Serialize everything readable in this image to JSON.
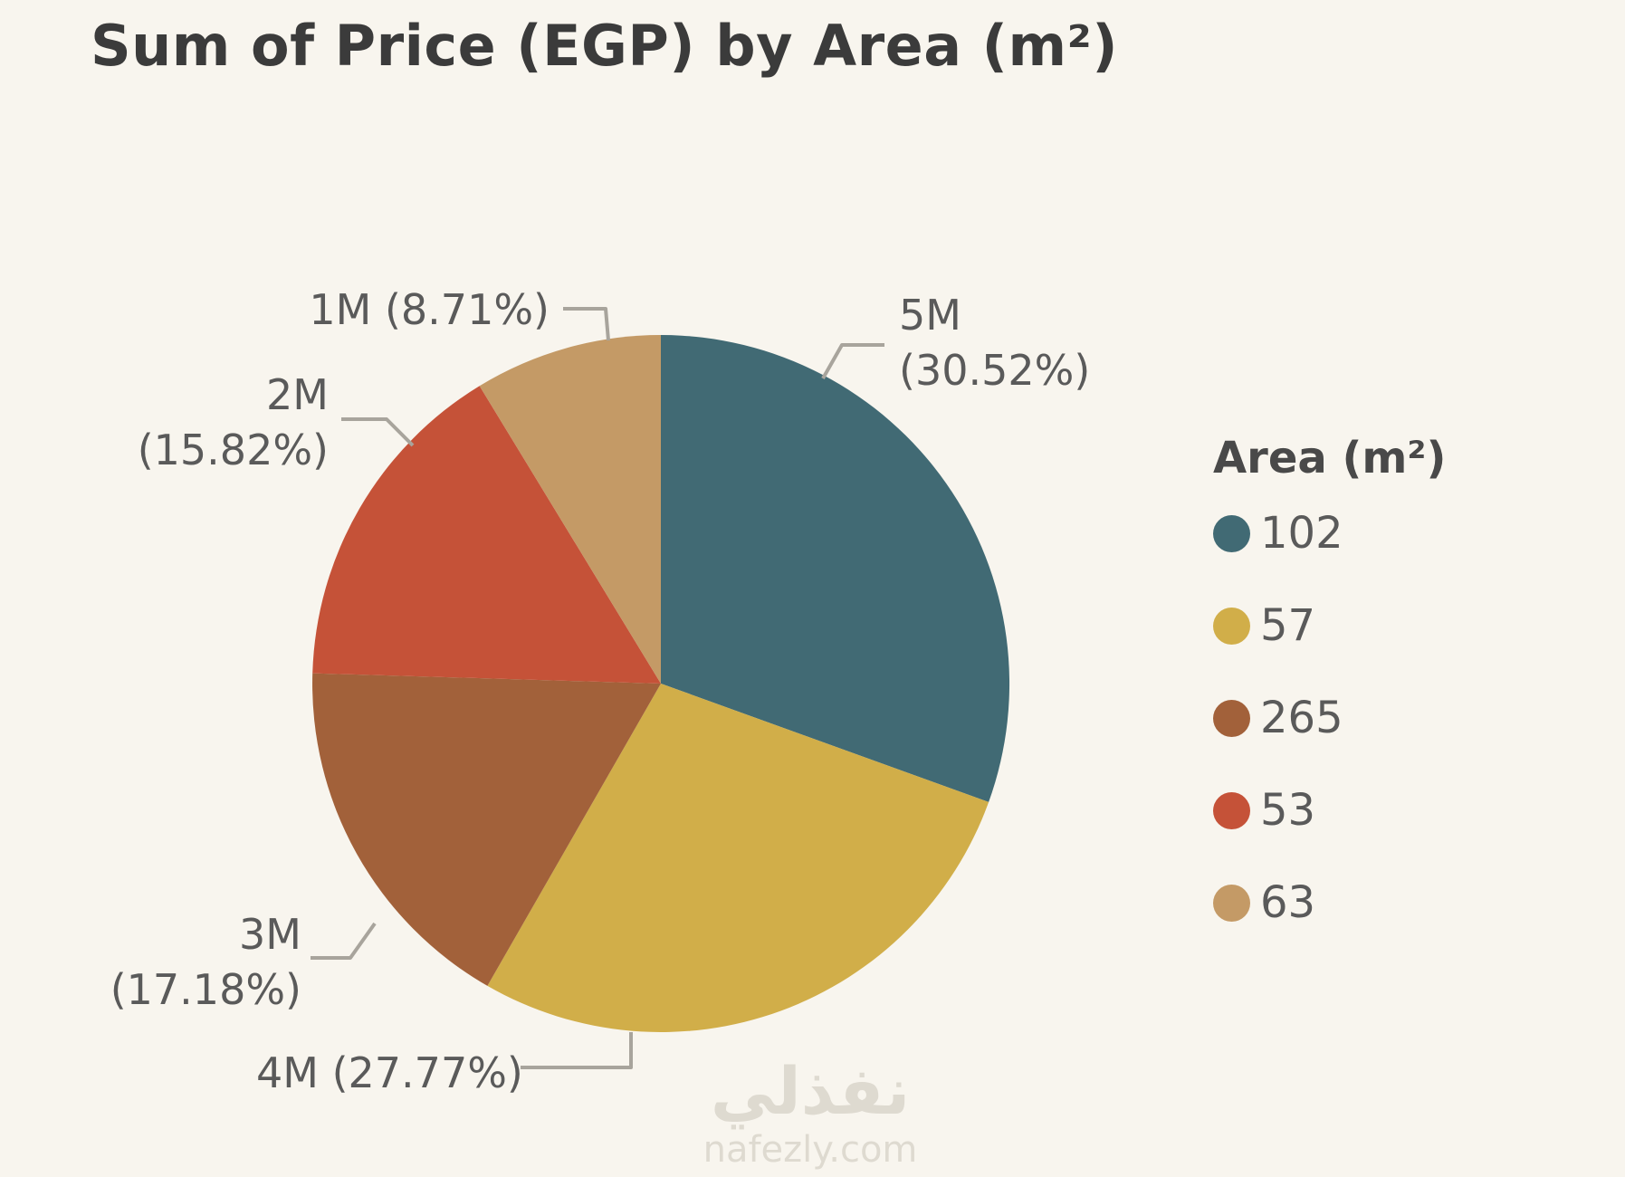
{
  "title": "Sum of Price (EGP) by Area (m²)",
  "legend": {
    "title": "Area (m²)"
  },
  "watermark": {
    "logo_text": "نفذلي",
    "site_text": "nafezly.com"
  },
  "colors": {
    "background": "#f8f5ee",
    "title_text": "#3b3b3b",
    "label_text": "#5a5a5a",
    "leader_line": "#a8a49c"
  },
  "chart_data": {
    "type": "pie",
    "title": "Sum of Price (EGP) by Area (m²)",
    "legend_title": "Area (m²)",
    "legend_position": "right",
    "start_angle_deg": 0,
    "direction": "clockwise",
    "slices": [
      {
        "category": "102",
        "value_label": "5M",
        "percent": 30.52,
        "color": "#416a74",
        "callout_lines": [
          "5M",
          "(30.52%)"
        ]
      },
      {
        "category": "57",
        "value_label": "4M",
        "percent": 27.77,
        "color": "#d1ae49",
        "callout_lines": [
          "4M (27.77%)"
        ]
      },
      {
        "category": "265",
        "value_label": "3M",
        "percent": 17.18,
        "color": "#a2613a",
        "callout_lines": [
          "3M",
          "(17.18%)"
        ]
      },
      {
        "category": "53",
        "value_label": "2M",
        "percent": 15.82,
        "color": "#c55238",
        "callout_lines": [
          "2M",
          "(15.82%)"
        ]
      },
      {
        "category": "63",
        "value_label": "1M",
        "percent": 8.71,
        "color": "#c49a66",
        "callout_lines": [
          "1M (8.71%)"
        ]
      }
    ]
  }
}
